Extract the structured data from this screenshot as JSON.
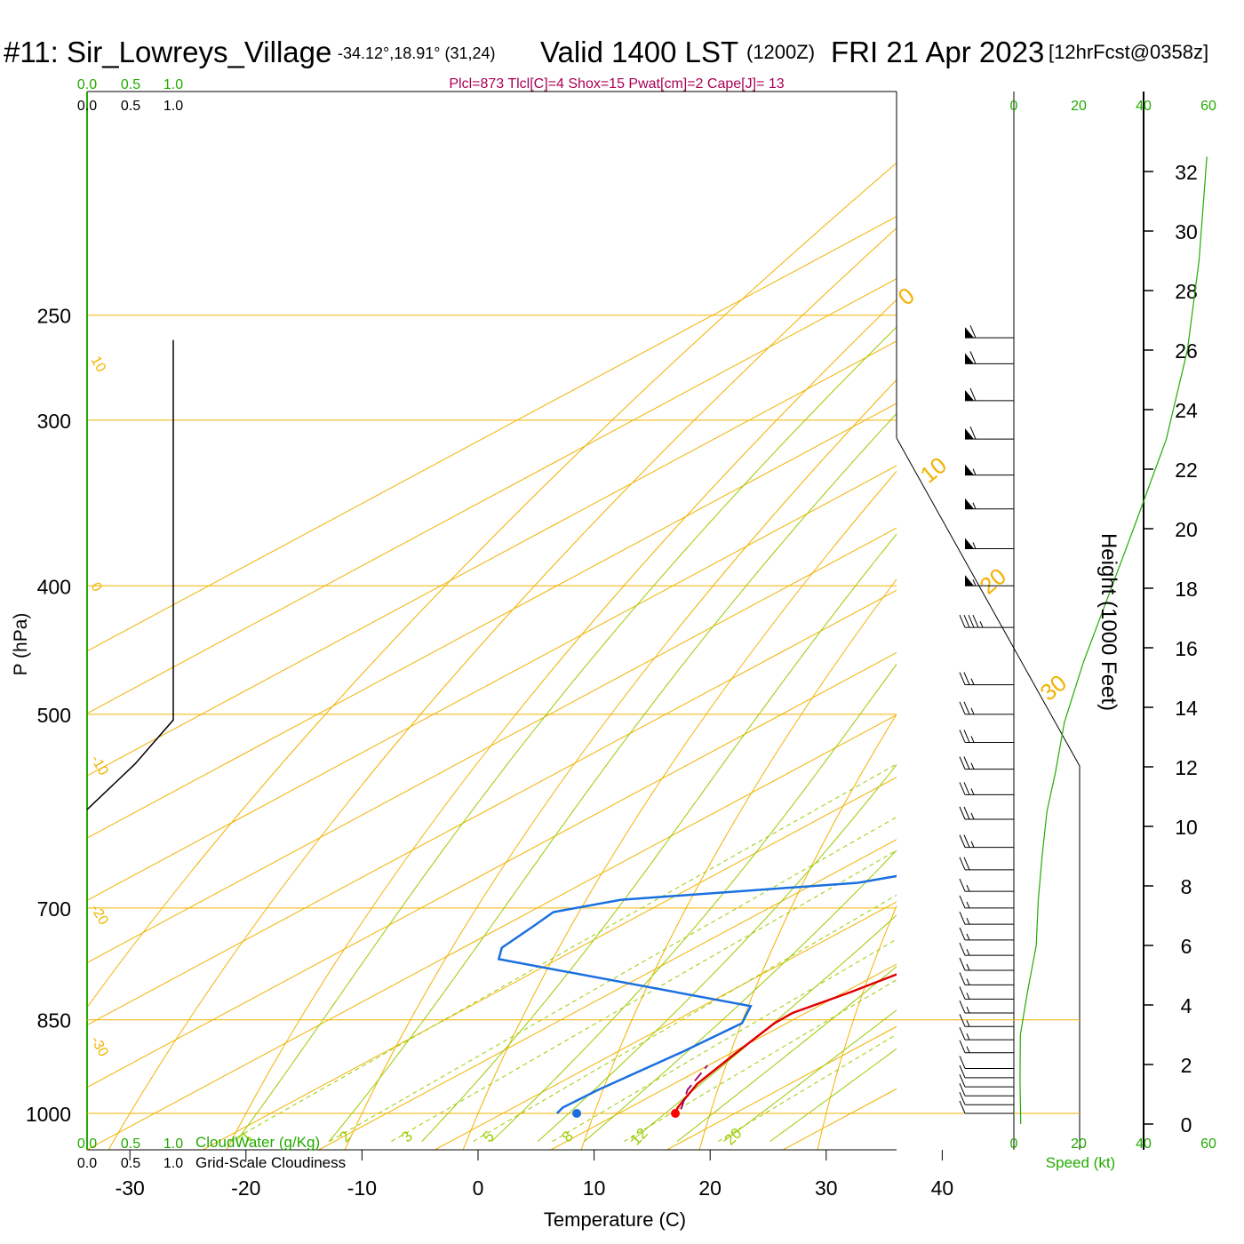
{
  "header": {
    "station": "#11: Sir_Lowreys_Village",
    "coords": "-34.12°,18.91° (31,24)",
    "valid": "Valid 1400 LST",
    "zulu": "(1200Z)",
    "date": "FRI 21 Apr 2023",
    "fcst": "[12hrFcst@0358z]"
  },
  "indices": "Plcl=873 Tlcl[C]=4 Shox=15 Pwat[cm]=2 Cape[J]= 13",
  "labels": {
    "ylabel": "P (hPa)",
    "xlabel": "Temperature (C)",
    "height_label": "Height (1000 Feet)",
    "cloudwater_label": "CloudWater (g/Kg)",
    "cloudiness_label": "Grid-Scale Cloudiness",
    "speed_label": "Speed (kt)"
  },
  "colors": {
    "isobar": "#f2b200",
    "isotherm": "#f2b200",
    "dry_adiabat": "#f2b200",
    "moist_adiabat": "#99cc00",
    "mixing_ratio": "#99cc00",
    "temperature": "#e00000",
    "dewpoint": "#1a6fe0",
    "parcel": "#990066",
    "green_text": "#22aa00",
    "index_text": "#aa0055"
  },
  "chart_data": {
    "type": "skew-t sounding",
    "pressure_ticks": [
      250,
      300,
      400,
      500,
      700,
      850,
      1000
    ],
    "temperature_ticks": [
      -30,
      -20,
      -10,
      0,
      10,
      20,
      30,
      40
    ],
    "cloud_scale_ticks": [
      "0.0",
      "0.5",
      "1.0"
    ],
    "height_ticks_kft": [
      0,
      2,
      4,
      6,
      8,
      10,
      12,
      14,
      16,
      18,
      20,
      22,
      24,
      26,
      28,
      30,
      32
    ],
    "speed_ticks_kt": [
      0,
      20,
      40,
      60
    ],
    "isotherm_labels": [
      "10",
      "0",
      "-10",
      "-20",
      "-30",
      "0",
      "10",
      "20",
      "30"
    ],
    "mixing_ratio_labels": [
      "1",
      "2",
      "3",
      "5",
      "8",
      "12",
      "20"
    ],
    "temperature": [
      [
        261,
        -2.8
      ],
      [
        300,
        1.2
      ],
      [
        350,
        5.3
      ],
      [
        400,
        7.8
      ],
      [
        450,
        9.5
      ],
      [
        500,
        10.2
      ],
      [
        550,
        9.6
      ],
      [
        600,
        8.7
      ],
      [
        650,
        9.6
      ],
      [
        700,
        12.8
      ],
      [
        725,
        13.8
      ],
      [
        775,
        12.5
      ],
      [
        810,
        11.2
      ],
      [
        840,
        9.8
      ],
      [
        855,
        10.0
      ],
      [
        900,
        11.8
      ],
      [
        950,
        13.8
      ],
      [
        990,
        16.2
      ]
    ],
    "dewpoint": [
      [
        261,
        -4.5
      ],
      [
        300,
        -1.8
      ],
      [
        350,
        2.2
      ],
      [
        400,
        5.3
      ],
      [
        450,
        8.1
      ],
      [
        500,
        10.3
      ],
      [
        550,
        9.4
      ],
      [
        600,
        7.3
      ],
      [
        640,
        1.5
      ],
      [
        670,
        -7.0
      ],
      [
        690,
        -24.5
      ],
      [
        705,
        -28.2
      ],
      [
        722,
        -27.5
      ],
      [
        750,
        -26.5
      ],
      [
        765,
        -24.8
      ],
      [
        830,
        5.0
      ],
      [
        855,
        7.2
      ],
      [
        900,
        7.0
      ],
      [
        960,
        6.3
      ],
      [
        990,
        6.3
      ]
    ],
    "parcel": [
      [
        993,
        16.8
      ],
      [
        960,
        14.0
      ],
      [
        920,
        11.5
      ]
    ],
    "surface_temperature": 17.0,
    "surface_dewpoint": 8.5,
    "cloudiness": [
      [
        261,
        0.0
      ],
      [
        505,
        0.0
      ],
      [
        545,
        0.15
      ],
      [
        590,
        0.45
      ]
    ],
    "wind_speed_profile": [
      [
        0,
        2.1
      ],
      [
        1.5,
        1.9
      ],
      [
        3,
        2.0
      ],
      [
        4.5,
        4.3
      ],
      [
        6,
        6.9
      ],
      [
        7.5,
        7.5
      ],
      [
        9,
        8.7
      ],
      [
        10.5,
        10.2
      ],
      [
        11.8,
        12.8
      ],
      [
        13.5,
        15.6
      ],
      [
        15.5,
        21.4
      ],
      [
        17.5,
        28.3
      ],
      [
        20,
        36.9
      ],
      [
        23,
        47.0
      ],
      [
        26,
        53.5
      ],
      [
        29,
        57.1
      ],
      [
        32.5,
        59.5
      ]
    ],
    "wind_barbs": [
      [
        1000,
        0,
        10
      ],
      [
        985,
        0,
        10
      ],
      [
        970,
        0,
        10
      ],
      [
        955,
        0,
        12
      ],
      [
        940,
        0,
        12
      ],
      [
        925,
        0,
        12
      ],
      [
        900,
        0,
        15
      ],
      [
        880,
        0,
        15
      ],
      [
        860,
        0,
        15
      ],
      [
        840,
        0,
        15
      ],
      [
        820,
        0,
        15
      ],
      [
        800,
        0,
        15
      ],
      [
        780,
        0,
        15
      ],
      [
        760,
        0,
        15
      ],
      [
        740,
        0,
        15
      ],
      [
        720,
        0,
        15
      ],
      [
        700,
        0,
        15
      ],
      [
        680,
        0,
        15
      ],
      [
        655,
        0,
        20
      ],
      [
        630,
        0,
        25
      ],
      [
        600,
        0,
        25
      ],
      [
        575,
        0,
        25
      ],
      [
        550,
        0,
        25
      ],
      [
        525,
        0,
        25
      ],
      [
        500,
        0,
        25
      ],
      [
        475,
        0,
        25
      ],
      [
        430,
        0,
        45
      ],
      [
        400,
        0,
        55
      ],
      [
        375,
        0,
        55
      ],
      [
        350,
        0,
        55
      ],
      [
        330,
        0,
        55
      ],
      [
        310,
        0,
        60
      ],
      [
        290,
        0,
        60
      ],
      [
        272,
        0,
        60
      ],
      [
        260,
        0,
        60
      ]
    ]
  }
}
